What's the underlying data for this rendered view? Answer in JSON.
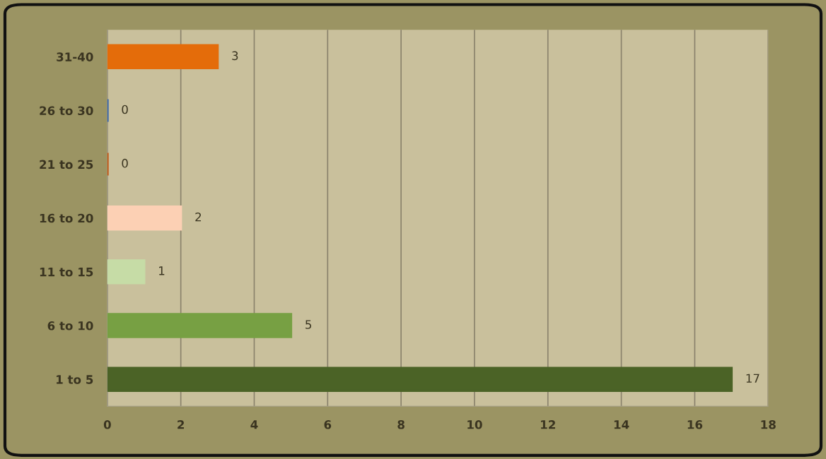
{
  "chart_data": {
    "type": "bar",
    "orientation": "horizontal",
    "categories": [
      "31-40",
      "26 to 30",
      "21 to 25",
      "16 to 20",
      "11 to 15",
      "6 to 10",
      "1 to 5"
    ],
    "values": [
      3,
      0,
      0,
      2,
      1,
      5,
      17
    ],
    "colors": [
      "#e46c0a",
      "#2e5fa8",
      "#c0500a",
      "#fcd0b4",
      "#c6dca6",
      "#77a043",
      "#4b6326"
    ],
    "xlim": [
      0,
      18
    ],
    "xticks": [
      0,
      2,
      4,
      6,
      8,
      10,
      12,
      14,
      16,
      18
    ],
    "grid": "x",
    "data_labels": true,
    "legend": false
  }
}
